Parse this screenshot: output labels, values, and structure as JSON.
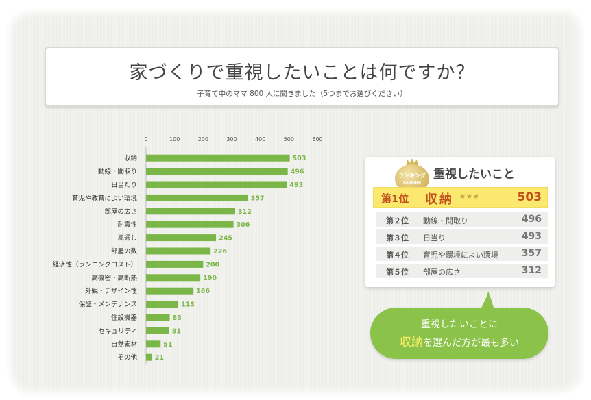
{
  "title": {
    "main": "家づくりで重視したいことは何ですか？",
    "sub": "子育て中のママ 800 人に聞きました（5つまでお選びください）"
  },
  "colors": {
    "bar": "#7ab648",
    "value_label": "#7ab648",
    "category_label": "#333333",
    "first_place": "#c2501f",
    "bubble": "#8bc34a"
  },
  "chart_data": {
    "type": "bar",
    "orientation": "horizontal",
    "categories": [
      "収納",
      "動線・間取り",
      "日当たり",
      "育児や教育によい環境",
      "部屋の広さ",
      "耐震性",
      "風通し",
      "部屋の数",
      "経済性（ランニングコスト）",
      "高機密・高断熱",
      "外観・デザイン性",
      "保証・メンテナンス",
      "住設機器",
      "セキュリティ",
      "自然素材",
      "その他"
    ],
    "values": [
      503,
      496,
      493,
      357,
      312,
      306,
      245,
      226,
      200,
      190,
      166,
      113,
      83,
      81,
      51,
      21
    ],
    "value_labels": [
      "503",
      "496",
      "493",
      "357",
      "312",
      "306",
      "245",
      "226",
      "200",
      "190",
      "166",
      "113",
      "83",
      "81",
      "51",
      "21"
    ],
    "x_ticks": [
      "0",
      "100",
      "200",
      "300",
      "400",
      "500",
      "600"
    ],
    "xlim": [
      0,
      600
    ],
    "axis_position": "top",
    "grid": false,
    "legend": "none"
  },
  "ranking": {
    "badge_text": "ランキング",
    "badge_sub": "RANKING",
    "title": "重視したいこと",
    "first": {
      "rank": "第1位",
      "name": "収納",
      "stars": "★★★",
      "value": "503"
    },
    "rows": [
      {
        "rank": "第２位",
        "name": "動線・間取り",
        "value": "496"
      },
      {
        "rank": "第３位",
        "name": "日当り",
        "value": "493"
      },
      {
        "rank": "第４位",
        "name": "育児や環境によい環境",
        "value": "357"
      },
      {
        "rank": "第５位",
        "name": "部屋の広さ",
        "value": "312"
      }
    ]
  },
  "bubble": {
    "line1": "重視したいことに",
    "highlight": "収納",
    "line2_rest": "を選んだ方が最も多い"
  }
}
